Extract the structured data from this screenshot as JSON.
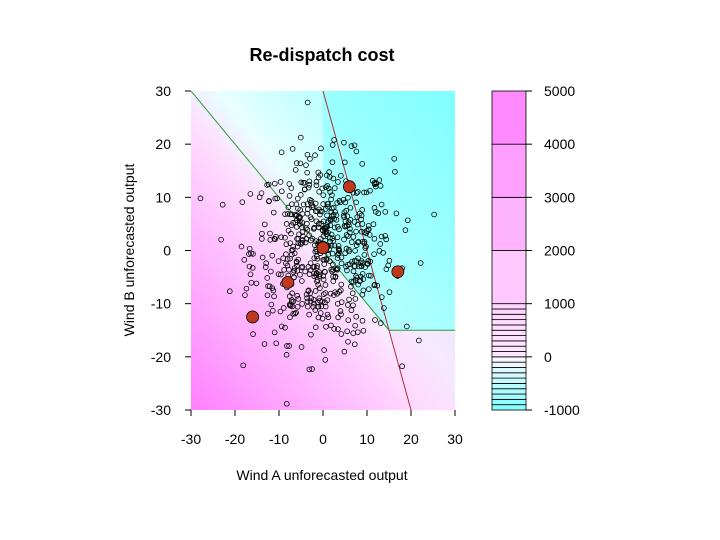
{
  "chart_data": {
    "type": "scatter",
    "title": "Re-dispatch cost",
    "xlabel": "Wind A unforecasted output",
    "ylabel": "Wind B unforecasted output",
    "xlim": [
      -30,
      30
    ],
    "ylim": [
      -30,
      30
    ],
    "x_ticks": [
      "-30",
      "-20",
      "-10",
      "0",
      "10",
      "20",
      "30"
    ],
    "y_ticks": [
      "-30",
      "-20",
      "-10",
      "0",
      "10",
      "20",
      "30"
    ],
    "colorbar": {
      "range": [
        -1000,
        5000
      ],
      "ticks": [
        "-1000",
        "0",
        "1000",
        "2000",
        "3000",
        "4000",
        "5000"
      ],
      "low_color": "#80ffff",
      "high_color": "#ff80ff"
    },
    "series": [
      {
        "name": "samples",
        "marker": "open circle",
        "cluster": {
          "center": [
            0,
            0
          ],
          "sd_x": 8,
          "sd_y": 8.5,
          "n": 600
        }
      },
      {
        "name": "representative points",
        "marker": "filled red circle",
        "color": "#c0381c",
        "points": [
          [
            -16,
            -12.5
          ],
          [
            -8,
            -6
          ],
          [
            0,
            0.5
          ],
          [
            6,
            12
          ],
          [
            17,
            -4
          ]
        ]
      }
    ],
    "boundaries": [
      {
        "name": "green-boundary",
        "color": "#2ea02e",
        "points": [
          [
            -30,
            30
          ],
          [
            -14,
            14
          ],
          [
            0,
            0
          ],
          [
            15,
            -15
          ],
          [
            30,
            -15
          ]
        ]
      },
      {
        "name": "red-boundary",
        "color": "#b03030",
        "points": [
          [
            0,
            30
          ],
          [
            20,
            -30
          ]
        ]
      }
    ]
  }
}
